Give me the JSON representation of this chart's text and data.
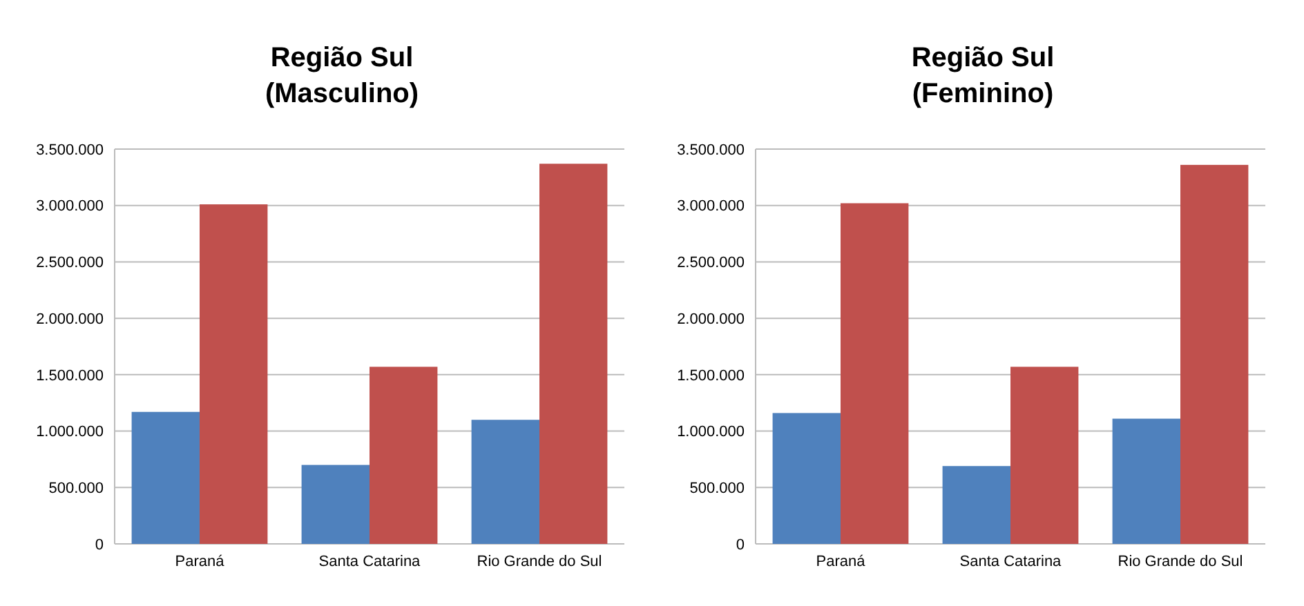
{
  "chart_data": [
    {
      "type": "bar",
      "title": "Região Sul\n(Masculino)",
      "categories": [
        "Paraná",
        "Santa Catarina",
        "Rio Grande do Sul"
      ],
      "series": [
        {
          "color": "#4f81bd",
          "values": [
            1170000,
            700000,
            1100000
          ]
        },
        {
          "color": "#c0504d",
          "values": [
            3010000,
            1570000,
            3370000
          ]
        }
      ],
      "ylim": [
        0,
        3500000
      ],
      "yticks": [
        0,
        {
          "value": 500000,
          "label": "500.000"
        },
        {
          "value": 1000000,
          "label": "1.000.000"
        },
        {
          "value": 1500000,
          "label": "1.500.000"
        },
        {
          "value": 2000000,
          "label": "2.000.000"
        },
        {
          "value": 2500000,
          "label": "2.500.000"
        },
        {
          "value": 3000000,
          "label": "3.000.000"
        },
        {
          "value": 3500000,
          "label": "3.500.000"
        }
      ],
      "grid": "y"
    },
    {
      "type": "bar",
      "title": "Região Sul\n(Feminino)",
      "categories": [
        "Paraná",
        "Santa Catarina",
        "Rio Grande do Sul"
      ],
      "series": [
        {
          "color": "#4f81bd",
          "values": [
            1160000,
            690000,
            1110000
          ]
        },
        {
          "color": "#c0504d",
          "values": [
            3020000,
            1570000,
            3360000
          ]
        }
      ],
      "ylim": [
        0,
        3500000
      ],
      "yticks": [
        0,
        {
          "value": 500000,
          "label": "500.000"
        },
        {
          "value": 1000000,
          "label": "1.000.000"
        },
        {
          "value": 1500000,
          "label": "1.500.000"
        },
        {
          "value": 2000000,
          "label": "2.000.000"
        },
        {
          "value": 2500000,
          "label": "2.500.000"
        },
        {
          "value": 3000000,
          "label": "3.000.000"
        },
        {
          "value": 3500000,
          "label": "3.500.000"
        }
      ],
      "grid": "y"
    }
  ]
}
